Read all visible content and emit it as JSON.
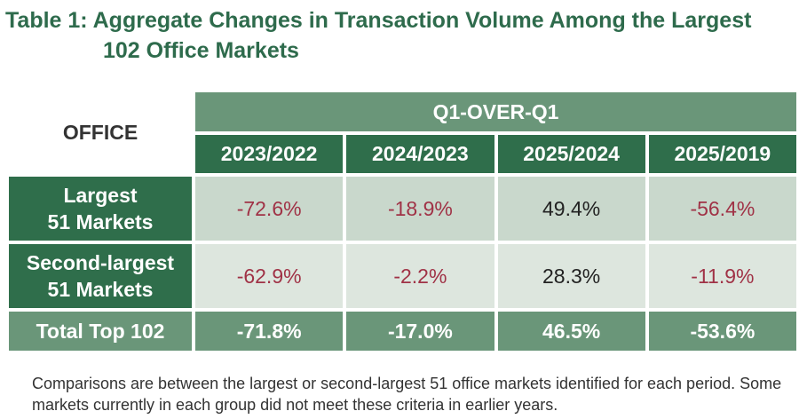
{
  "title": {
    "line1": "Table 1: Aggregate Changes in Transaction Volume Among the Largest",
    "line2": "102 Office Markets"
  },
  "table": {
    "corner_label": "OFFICE",
    "group_header": "Q1-OVER-Q1",
    "columns": [
      "2023/2022",
      "2024/2023",
      "2025/2024",
      "2025/2019"
    ],
    "rows": [
      {
        "label_line1": "Largest",
        "label_line2": "51 Markets",
        "values": [
          "-72.6%",
          "-18.9%",
          "49.4%",
          "-56.4%"
        ]
      },
      {
        "label_line1": "Second-largest",
        "label_line2": "51 Markets",
        "values": [
          "-62.9%",
          "-2.2%",
          "28.3%",
          "-11.9%"
        ]
      }
    ],
    "total": {
      "label": "Total Top 102",
      "values": [
        "-71.8%",
        "-17.0%",
        "46.5%",
        "-53.6%"
      ]
    }
  },
  "footnote": "Comparisons are between the largest or second-largest 51 office markets identified for each period. Some markets currently in each group did not meet these criteria in earlier years.",
  "colors": {
    "title": "#2e6b4c",
    "dark_green": "#2f6e4b",
    "mid_green": "#6a9679",
    "negative_text": "#a03246"
  }
}
